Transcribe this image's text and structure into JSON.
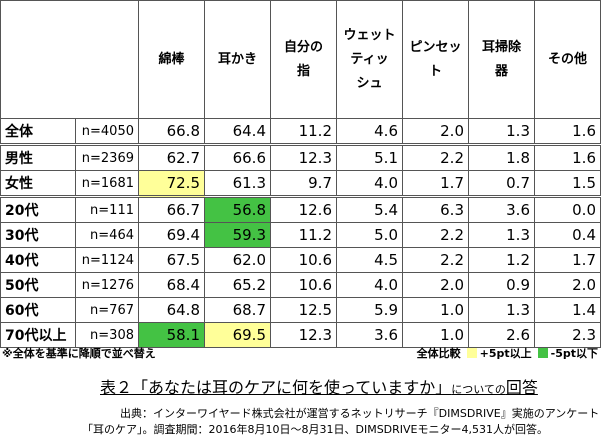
{
  "table": {
    "headers": [
      "綿棒",
      "耳かき",
      "自分の\n指",
      "ウェット\nティッ\nシュ",
      "ピンセッ\nト",
      "耳掃除\n器",
      "その他"
    ],
    "groups": [
      [
        {
          "label": "全体",
          "n": "n=4050",
          "values": [
            "66.8",
            "64.4",
            "11.2",
            "4.6",
            "2.0",
            "1.3",
            "1.6"
          ]
        }
      ],
      [
        {
          "label": "男性",
          "n": "n=2369",
          "values": [
            "62.7",
            "66.6",
            "12.3",
            "5.1",
            "2.2",
            "1.8",
            "1.6"
          ]
        },
        {
          "label": "女性",
          "n": "n=1681",
          "values": [
            "72.5",
            "61.3",
            "9.7",
            "4.0",
            "1.7",
            "0.7",
            "1.5"
          ]
        }
      ],
      [
        {
          "label": "20代",
          "n": "n=111",
          "values": [
            "66.7",
            "56.8",
            "12.6",
            "5.4",
            "6.3",
            "3.6",
            "0.0"
          ]
        },
        {
          "label": "30代",
          "n": "n=464",
          "values": [
            "69.4",
            "59.3",
            "11.2",
            "5.0",
            "2.2",
            "1.3",
            "0.4"
          ]
        },
        {
          "label": "40代",
          "n": "n=1124",
          "values": [
            "67.5",
            "62.0",
            "10.6",
            "4.5",
            "2.2",
            "1.2",
            "1.7"
          ]
        },
        {
          "label": "50代",
          "n": "n=1276",
          "values": [
            "68.4",
            "65.2",
            "10.6",
            "4.0",
            "2.0",
            "0.9",
            "2.0"
          ]
        },
        {
          "label": "60代",
          "n": "n=767",
          "values": [
            "64.8",
            "68.7",
            "12.5",
            "5.9",
            "1.0",
            "1.3",
            "1.4"
          ]
        },
        {
          "label": "70代以上",
          "n": "n=308",
          "values": [
            "58.1",
            "69.5",
            "12.3",
            "3.6",
            "1.0",
            "2.6",
            "2.3"
          ]
        }
      ]
    ]
  },
  "note": "※全体を基準に降順で並べ替え",
  "legend": {
    "title": "全体比較",
    "items": [
      {
        "color": "#ffff99",
        "label": "+5pt以上"
      },
      {
        "color": "#44c244",
        "label": "-5pt以下"
      }
    ]
  },
  "caption": {
    "main": "表２「あなたは耳のケアに何を使っていますか」",
    "small": "についての",
    "end": "回答"
  },
  "source": [
    "出典：インターワイヤード株式会社が運営するネットリサーチ『DIMSDRIVE』実施のアンケート",
    "「耳のケア」。調査期間：2016年8月10日～8月31日、DIMSDRIVEモニター4,531人が回答。"
  ]
}
